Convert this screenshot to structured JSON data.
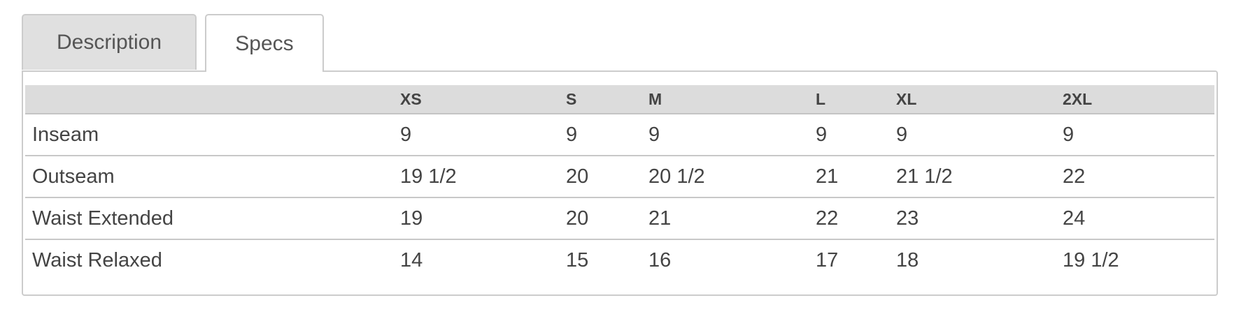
{
  "tabs": [
    {
      "label": "Description",
      "active": false
    },
    {
      "label": "Specs",
      "active": true
    }
  ],
  "specs_table": {
    "columns": [
      "",
      "XS",
      "S",
      "M",
      "L",
      "XL",
      "2XL"
    ],
    "rows": [
      {
        "label": "Inseam",
        "values": [
          "9",
          "9",
          "9",
          "9",
          "9",
          "9"
        ]
      },
      {
        "label": "Outseam",
        "values": [
          "19 1/2",
          "20",
          "20 1/2",
          "21",
          "21 1/2",
          "22"
        ]
      },
      {
        "label": "Waist Extended",
        "values": [
          "19",
          "20",
          "21",
          "22",
          "23",
          "24"
        ]
      },
      {
        "label": "Waist Relaxed",
        "values": [
          "14",
          "15",
          "16",
          "17",
          "18",
          "19 1/2"
        ]
      }
    ]
  }
}
